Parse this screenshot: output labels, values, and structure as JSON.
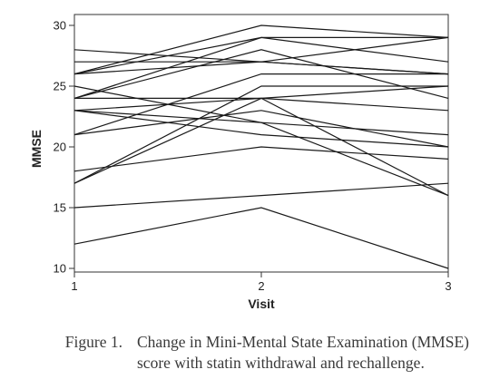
{
  "chart_data": {
    "type": "line",
    "xlabel": "Visit",
    "ylabel": "MMSE",
    "x": [
      1,
      2,
      3
    ],
    "xticks": [
      "1",
      "2",
      "3"
    ],
    "yticks": [
      "10",
      "15",
      "20",
      "25",
      "30"
    ],
    "xlim": [
      1,
      3
    ],
    "ylim": [
      10,
      30
    ],
    "grid": false,
    "line_color": "#1a1a1a",
    "series": [
      {
        "values": [
          28,
          27,
          26
        ]
      },
      {
        "values": [
          26,
          30,
          29
        ]
      },
      {
        "values": [
          26,
          29,
          27
        ]
      },
      {
        "values": [
          26,
          27,
          26
        ]
      },
      {
        "values": [
          27,
          27,
          29
        ]
      },
      {
        "values": [
          25,
          22,
          16
        ]
      },
      {
        "values": [
          24,
          29,
          29
        ]
      },
      {
        "values": [
          24,
          28,
          24
        ]
      },
      {
        "values": [
          24,
          24,
          25
        ]
      },
      {
        "values": [
          23,
          24,
          23
        ]
      },
      {
        "values": [
          23,
          21,
          20
        ]
      },
      {
        "values": [
          21,
          23,
          20
        ]
      },
      {
        "values": [
          21,
          26,
          26
        ]
      },
      {
        "values": [
          23,
          22,
          21
        ]
      },
      {
        "values": [
          17,
          25,
          25
        ]
      },
      {
        "values": [
          17,
          24,
          16
        ]
      },
      {
        "values": [
          18,
          20,
          19
        ]
      },
      {
        "values": [
          15,
          16,
          17
        ]
      },
      {
        "values": [
          12,
          15,
          10
        ]
      }
    ]
  },
  "caption": {
    "label": "Figure 1.",
    "text": "Change in Mini-Mental State Examination (MMSE) score with statin withdrawal and rechallenge."
  }
}
